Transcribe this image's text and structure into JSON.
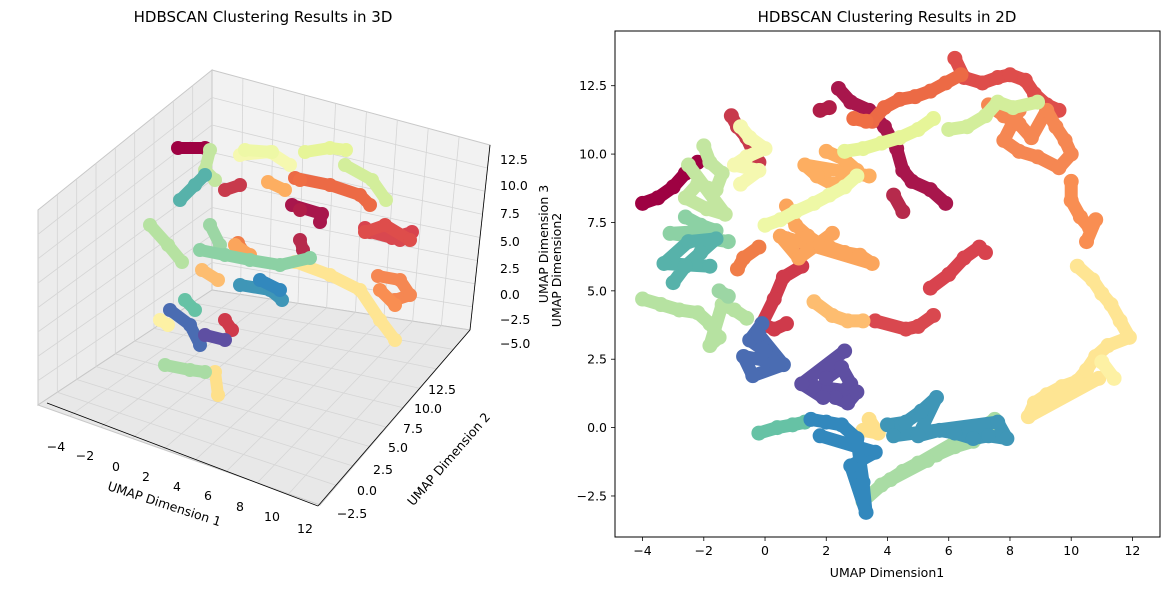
{
  "chart_data": [
    {
      "type": "scatter",
      "title": "HDBSCAN Clustering Results in 3D",
      "xlabel": "UMAP Dimension 1",
      "ylabel": "UMAP Dimension 2",
      "zlabel": "UMAP Dimension 3",
      "zlabel_overlap": "UMAP Dimension2",
      "xticks": [
        "−4",
        "−2",
        "0",
        "2",
        "4",
        "6",
        "8",
        "10",
        "12"
      ],
      "yticks": [
        "−2.5",
        "0.0",
        "2.5",
        "5.0",
        "7.5",
        "10.0",
        "12.5"
      ],
      "zticks": [
        "−5.0",
        "−2.5",
        "0.0",
        "2.5",
        "5.0",
        "7.5",
        "10.0",
        "12.5"
      ],
      "xlim": [
        -4.5,
        12.5
      ],
      "ylim": [
        -3,
        14
      ],
      "zlim": [
        -6,
        14
      ],
      "grid": true
    },
    {
      "type": "scatter",
      "title": "HDBSCAN Clustering Results in 2D",
      "xlabel": "UMAP Dimension1",
      "ylabel": "",
      "xticks": [
        "−4",
        "−2",
        "0",
        "2",
        "4",
        "6",
        "8",
        "10",
        "12"
      ],
      "yticks": [
        "−2.5",
        "0.0",
        "2.5",
        "5.0",
        "7.5",
        "10.0",
        "12.5"
      ],
      "xlim": [
        -4.9,
        12.9
      ],
      "ylim": [
        -4.0,
        14.5
      ],
      "grid": false,
      "colormap": "Spectral"
    }
  ],
  "clusters": [
    {
      "color": "#9e0142",
      "points": [
        [
          -4.0,
          8.2
        ],
        [
          -3.5,
          8.4
        ],
        [
          -3.0,
          8.8
        ],
        [
          -2.6,
          9.3
        ],
        [
          -2.2,
          9.7
        ]
      ]
    },
    {
      "color": "#a8164c",
      "points": [
        [
          2.4,
          12.4
        ],
        [
          2.8,
          11.9
        ],
        [
          3.4,
          11.6
        ],
        [
          3.9,
          11.0
        ],
        [
          4.3,
          10.2
        ],
        [
          4.5,
          9.4
        ],
        [
          4.8,
          9.0
        ],
        [
          5.4,
          8.7
        ],
        [
          5.9,
          8.2
        ]
      ]
    },
    {
      "color": "#b01d48",
      "points": [
        [
          1.8,
          11.6
        ],
        [
          2.1,
          11.7
        ]
      ]
    },
    {
      "color": "#b62a4c",
      "points": [
        [
          4.2,
          8.5
        ],
        [
          4.5,
          7.9
        ]
      ]
    },
    {
      "color": "#c83a4c",
      "points": [
        [
          -1.1,
          11.4
        ],
        [
          -0.9,
          11.0
        ],
        [
          -0.6,
          10.6
        ],
        [
          -0.4,
          10.1
        ],
        [
          -0.2,
          9.7
        ]
      ]
    },
    {
      "color": "#cf3a4b",
      "points": [
        [
          0.7,
          6.9
        ],
        [
          1.0,
          6.4
        ],
        [
          1.2,
          5.9
        ],
        [
          0.6,
          5.5
        ],
        [
          0.3,
          4.7
        ],
        [
          -0.1,
          3.8
        ],
        [
          0.3,
          3.6
        ],
        [
          0.7,
          3.8
        ]
      ]
    },
    {
      "color": "#d8434e",
      "points": [
        [
          5.4,
          5.1
        ],
        [
          6.0,
          5.6
        ],
        [
          6.5,
          6.2
        ],
        [
          7.0,
          6.6
        ],
        [
          7.2,
          6.4
        ]
      ]
    },
    {
      "color": "#d9484f",
      "points": [
        [
          5.5,
          4.1
        ],
        [
          5.0,
          3.7
        ],
        [
          4.6,
          3.6
        ],
        [
          3.6,
          3.9
        ]
      ]
    },
    {
      "color": "#de4d4b",
      "points": [
        [
          6.2,
          13.5
        ],
        [
          6.5,
          12.8
        ],
        [
          7.1,
          12.6
        ],
        [
          7.6,
          12.8
        ],
        [
          8.0,
          12.9
        ],
        [
          8.5,
          12.7
        ],
        [
          8.8,
          12.2
        ],
        [
          9.2,
          11.8
        ],
        [
          9.6,
          11.6
        ]
      ]
    },
    {
      "color": "#ec6a45",
      "points": [
        [
          3.5,
          11.2
        ],
        [
          3.9,
          11.7
        ],
        [
          4.4,
          12.0
        ],
        [
          4.9,
          12.1
        ],
        [
          5.4,
          12.3
        ],
        [
          5.9,
          12.6
        ],
        [
          6.4,
          12.9
        ]
      ]
    },
    {
      "color": "#ef6e44",
      "points": [
        [
          2.9,
          11.3
        ],
        [
          3.3,
          11.2
        ]
      ]
    },
    {
      "color": "#f07d48",
      "points": [
        [
          -0.2,
          6.6
        ],
        [
          -0.7,
          6.2
        ],
        [
          -0.9,
          5.8
        ]
      ]
    },
    {
      "color": "#f58752",
      "points": [
        [
          7.3,
          11.8
        ],
        [
          7.8,
          11.4
        ],
        [
          8.3,
          11.1
        ],
        [
          8.7,
          10.6
        ],
        [
          9.2,
          11.6
        ],
        [
          9.5,
          11.0
        ],
        [
          9.8,
          10.5
        ],
        [
          10.0,
          10.0
        ],
        [
          9.6,
          9.5
        ],
        [
          8.9,
          9.9
        ],
        [
          8.3,
          10.1
        ],
        [
          7.8,
          10.5
        ],
        [
          8.3,
          11.6
        ]
      ]
    },
    {
      "color": "#f98e52",
      "points": [
        [
          10.0,
          9.0
        ],
        [
          10.0,
          8.3
        ],
        [
          10.3,
          7.7
        ],
        [
          10.6,
          7.3
        ],
        [
          10.8,
          7.6
        ],
        [
          10.5,
          6.8
        ]
      ]
    },
    {
      "color": "#fba55c",
      "points": [
        [
          0.7,
          8.1
        ],
        [
          1.0,
          7.4
        ],
        [
          1.4,
          7.0
        ],
        [
          1.8,
          6.7
        ],
        [
          2.1,
          6.6
        ],
        [
          2.6,
          6.4
        ],
        [
          3.1,
          6.3
        ],
        [
          3.5,
          6.0
        ],
        [
          0.5,
          7.0
        ],
        [
          1.1,
          6.2
        ],
        [
          2.2,
          7.1
        ]
      ]
    },
    {
      "color": "#fdae61",
      "points": [
        [
          2.0,
          10.1
        ],
        [
          2.6,
          9.8
        ],
        [
          3.0,
          9.4
        ],
        [
          2.6,
          9.0
        ],
        [
          2.2,
          8.9
        ],
        [
          1.7,
          9.2
        ],
        [
          1.3,
          9.6
        ],
        [
          3.4,
          9.2
        ]
      ]
    },
    {
      "color": "#fdbd70",
      "points": [
        [
          1.6,
          4.6
        ],
        [
          2.2,
          4.1
        ],
        [
          2.7,
          3.9
        ],
        [
          3.2,
          3.9
        ]
      ]
    },
    {
      "color": "#fee08b",
      "points": [
        [
          3.4,
          0.3
        ],
        [
          3.7,
          -0.2
        ],
        [
          3.2,
          -0.1
        ]
      ]
    },
    {
      "color": "#fee593",
      "points": [
        [
          10.2,
          5.9
        ],
        [
          10.7,
          5.4
        ],
        [
          11.0,
          4.9
        ],
        [
          11.3,
          4.5
        ],
        [
          11.6,
          3.9
        ],
        [
          11.9,
          3.3
        ],
        [
          11.2,
          3.0
        ],
        [
          10.8,
          2.6
        ],
        [
          10.5,
          2.1
        ],
        [
          10.2,
          1.7
        ],
        [
          9.7,
          1.5
        ],
        [
          9.2,
          1.2
        ],
        [
          8.8,
          0.9
        ],
        [
          8.6,
          0.4
        ],
        [
          10.9,
          1.8
        ]
      ]
    },
    {
      "color": "#fdf1a4",
      "points": [
        [
          11.0,
          2.4
        ],
        [
          11.4,
          1.8
        ]
      ]
    },
    {
      "color": "#f5f8b0",
      "points": [
        [
          -0.8,
          11.0
        ],
        [
          -0.5,
          10.6
        ],
        [
          0.0,
          10.2
        ],
        [
          -0.6,
          9.9
        ],
        [
          -1.0,
          9.6
        ],
        [
          -0.2,
          9.4
        ],
        [
          -0.8,
          8.9
        ]
      ]
    },
    {
      "color": "#eef8a6",
      "points": [
        [
          0.0,
          7.4
        ],
        [
          0.5,
          7.6
        ],
        [
          1.0,
          7.9
        ],
        [
          1.6,
          8.2
        ],
        [
          2.1,
          8.5
        ],
        [
          2.6,
          8.8
        ],
        [
          3.0,
          9.2
        ]
      ]
    },
    {
      "color": "#e6f598",
      "points": [
        [
          2.6,
          10.1
        ],
        [
          3.2,
          10.2
        ],
        [
          3.8,
          10.4
        ],
        [
          4.4,
          10.6
        ],
        [
          5.0,
          10.9
        ],
        [
          5.5,
          11.3
        ]
      ]
    },
    {
      "color": "#d3ee9b",
      "points": [
        [
          6.0,
          10.9
        ],
        [
          6.6,
          11.0
        ],
        [
          7.2,
          11.4
        ],
        [
          7.6,
          11.9
        ],
        [
          8.1,
          11.7
        ],
        [
          8.9,
          11.9
        ]
      ]
    },
    {
      "color": "#c3e6a0",
      "points": [
        [
          -2.0,
          10.3
        ],
        [
          -1.8,
          9.7
        ],
        [
          -1.4,
          9.3
        ],
        [
          -1.6,
          8.7
        ],
        [
          -2.2,
          8.9
        ],
        [
          -2.6,
          8.4
        ],
        [
          -1.9,
          8.0
        ],
        [
          -1.3,
          7.8
        ],
        [
          -2.5,
          9.6
        ]
      ]
    },
    {
      "color": "#b6e2a1",
      "points": [
        [
          -4.0,
          4.7
        ],
        [
          -3.4,
          4.5
        ],
        [
          -2.8,
          4.3
        ],
        [
          -2.2,
          4.2
        ],
        [
          -1.8,
          3.8
        ],
        [
          -1.5,
          3.3
        ],
        [
          -1.8,
          3.0
        ],
        [
          -1.4,
          4.5
        ],
        [
          -1.0,
          4.3
        ],
        [
          -0.6,
          4.0
        ]
      ]
    },
    {
      "color": "#a9dca4",
      "points": [
        [
          3.2,
          -2.7
        ],
        [
          3.8,
          -2.1
        ],
        [
          4.5,
          -1.6
        ],
        [
          5.0,
          -1.3
        ],
        [
          5.6,
          -1.0
        ],
        [
          6.2,
          -0.7
        ],
        [
          6.8,
          -0.5
        ],
        [
          7.2,
          -0.2
        ],
        [
          7.5,
          0.3
        ],
        [
          4.1,
          -1.9
        ],
        [
          5.3,
          -1.2
        ]
      ]
    },
    {
      "color": "#9cd6a4",
      "points": [
        [
          -1.5,
          5.0
        ],
        [
          -1.2,
          4.8
        ]
      ]
    },
    {
      "color": "#8cd1a4",
      "points": [
        [
          -2.6,
          7.7
        ],
        [
          -2.1,
          7.4
        ],
        [
          -1.6,
          7.2
        ],
        [
          -3.1,
          7.1
        ],
        [
          -1.2,
          6.8
        ]
      ]
    },
    {
      "color": "#66c2a5",
      "points": [
        [
          -0.2,
          -0.2
        ],
        [
          0.4,
          0.0
        ],
        [
          0.9,
          0.1
        ],
        [
          1.3,
          0.2
        ]
      ]
    },
    {
      "color": "#57b2aa",
      "points": [
        [
          -3.0,
          5.3
        ],
        [
          -2.6,
          5.9
        ],
        [
          -2.1,
          6.4
        ],
        [
          -1.6,
          6.9
        ],
        [
          -2.5,
          6.8
        ],
        [
          -3.3,
          6.0
        ],
        [
          -1.8,
          5.9
        ]
      ]
    },
    {
      "color": "#3f96b7",
      "points": [
        [
          4.0,
          0.1
        ],
        [
          4.6,
          0.2
        ],
        [
          5.1,
          0.6
        ],
        [
          5.6,
          1.1
        ],
        [
          5.0,
          -0.3
        ],
        [
          5.7,
          -0.1
        ],
        [
          6.2,
          -0.2
        ],
        [
          6.8,
          -0.4
        ],
        [
          7.3,
          -0.3
        ],
        [
          7.9,
          -0.4
        ],
        [
          7.6,
          0.2
        ],
        [
          4.2,
          -0.3
        ]
      ]
    },
    {
      "color": "#3288bd",
      "points": [
        [
          1.5,
          0.3
        ],
        [
          2.0,
          0.2
        ],
        [
          2.5,
          0.1
        ],
        [
          3.0,
          -0.4
        ],
        [
          3.1,
          -1.2
        ],
        [
          3.2,
          -2.0
        ],
        [
          3.3,
          -3.1
        ],
        [
          2.8,
          -1.4
        ],
        [
          3.6,
          -0.9
        ],
        [
          1.8,
          -0.3
        ]
      ]
    },
    {
      "color": "#4a6cb2",
      "points": [
        [
          -0.1,
          3.8
        ],
        [
          -0.5,
          3.2
        ],
        [
          0.0,
          2.8
        ],
        [
          0.3,
          2.4
        ],
        [
          -0.7,
          2.6
        ],
        [
          -0.4,
          1.9
        ],
        [
          0.6,
          2.3
        ],
        [
          -0.2,
          3.4
        ]
      ]
    },
    {
      "color": "#5e4fa2",
      "points": [
        [
          2.0,
          1.8
        ],
        [
          2.5,
          2.2
        ],
        [
          2.8,
          1.6
        ],
        [
          2.3,
          1.1
        ],
        [
          2.7,
          0.9
        ],
        [
          3.0,
          1.3
        ],
        [
          1.6,
          1.5
        ],
        [
          1.9,
          1.1
        ],
        [
          1.2,
          1.6
        ],
        [
          2.6,
          2.8
        ]
      ]
    }
  ]
}
